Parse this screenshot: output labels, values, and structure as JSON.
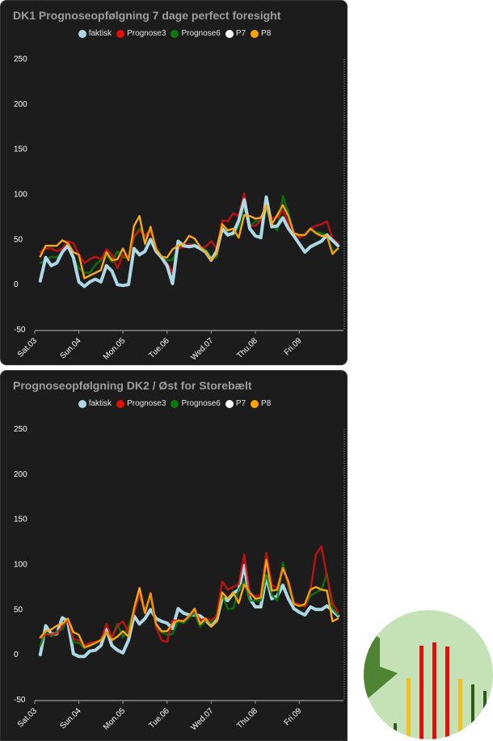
{
  "colors": {
    "faktisk": "#add8e6",
    "Prognose3": "#e0100f",
    "Prognose6": "#0b7a0b",
    "P7": "#ffffff",
    "P8": "#ffa500"
  },
  "chart_data": [
    {
      "type": "line",
      "title": "DK1 Prognoseopfølgning 7 dage perfect foresight",
      "ylim": [
        -50,
        250
      ],
      "yticks": [
        "250",
        "200",
        "150",
        "100",
        "50",
        "0",
        "-50"
      ],
      "ytick_values": [
        250,
        200,
        150,
        100,
        50,
        0,
        -50
      ],
      "xticks": [
        "Sat.03",
        "Sun.04",
        "Mon.05",
        "Tue.06",
        "Wed.07",
        "Thu.08",
        "Fri.09"
      ],
      "xlim_days": [
        0,
        7
      ],
      "x_start_day": 0.125,
      "x_step_day": 0.125,
      "legend": [
        "faktisk",
        "Prognose3",
        "Prognose6",
        "P7",
        "P8"
      ],
      "series": [
        {
          "name": "P7",
          "values": [
            31,
            43,
            43,
            43,
            49,
            46,
            36,
            33,
            7,
            10,
            13,
            16,
            36,
            27,
            28,
            40,
            27,
            65,
            76,
            45,
            64,
            39,
            31,
            30,
            39,
            43,
            45,
            54,
            51,
            42,
            36,
            27,
            34,
            67,
            60,
            62,
            52,
            77,
            76,
            73,
            74,
            88,
            67,
            77,
            88,
            76,
            57,
            55,
            55,
            62,
            57,
            54,
            54,
            34,
            40
          ]
        },
        {
          "name": "Prognose6",
          "values": [
            24,
            27,
            31,
            30,
            36,
            45,
            30,
            18,
            13,
            13,
            22,
            27,
            33,
            25,
            37,
            30,
            30,
            52,
            62,
            54,
            61,
            42,
            31,
            27,
            27,
            42,
            42,
            43,
            45,
            40,
            39,
            30,
            30,
            65,
            57,
            55,
            64,
            86,
            65,
            70,
            71,
            83,
            68,
            60,
            98,
            80,
            54,
            54,
            55,
            61,
            58,
            57,
            55,
            36,
            40
          ]
        },
        {
          "name": "Prognose3",
          "values": [
            36,
            40,
            40,
            37,
            40,
            48,
            46,
            33,
            24,
            28,
            31,
            28,
            39,
            33,
            18,
            33,
            28,
            54,
            60,
            54,
            60,
            40,
            30,
            24,
            13,
            40,
            42,
            45,
            43,
            40,
            42,
            48,
            40,
            71,
            70,
            79,
            76,
            101,
            65,
            65,
            71,
            86,
            74,
            74,
            82,
            68,
            57,
            52,
            55,
            62,
            65,
            67,
            70,
            51,
            46
          ]
        },
        {
          "name": "faktisk",
          "values": [
            4,
            30,
            21,
            24,
            36,
            43,
            30,
            3,
            -2,
            3,
            6,
            3,
            21,
            15,
            0,
            -1,
            0,
            40,
            33,
            37,
            50,
            37,
            30,
            21,
            1,
            48,
            43,
            42,
            43,
            40,
            36,
            27,
            37,
            62,
            55,
            57,
            71,
            94,
            62,
            54,
            52,
            97,
            64,
            65,
            74,
            62,
            54,
            45,
            36,
            42,
            45,
            48,
            55,
            49,
            43
          ]
        },
        {
          "name": "P8",
          "values": [
            31,
            43,
            43,
            43,
            49,
            46,
            36,
            33,
            7,
            10,
            13,
            16,
            36,
            27,
            28,
            40,
            27,
            65,
            76,
            45,
            64,
            39,
            31,
            30,
            39,
            43,
            45,
            54,
            51,
            42,
            36,
            27,
            34,
            67,
            60,
            62,
            52,
            77,
            76,
            73,
            74,
            88,
            67,
            77,
            88,
            76,
            57,
            55,
            55,
            62,
            57,
            54,
            54,
            34,
            40
          ]
        }
      ]
    },
    {
      "type": "line",
      "title": "Prognoseopfølgning DK2 / Øst for Storebælt",
      "ylim": [
        -50,
        250
      ],
      "yticks": [
        "250",
        "200",
        "150",
        "100",
        "50",
        "0",
        "-50"
      ],
      "ytick_values": [
        250,
        200,
        150,
        100,
        50,
        0,
        -50
      ],
      "xticks": [
        "Sat.03",
        "Sun.04",
        "Mon.05",
        "Tue.06",
        "Wed.07",
        "Thu.08",
        "Fri.09"
      ],
      "xlim_days": [
        0,
        7
      ],
      "x_start_day": 0.125,
      "x_step_day": 0.125,
      "legend": [
        "faktisk",
        "Prognose3",
        "Prognose6",
        "P7",
        "P8"
      ],
      "series": [
        {
          "name": "P7",
          "values": [
            19,
            26,
            28,
            32,
            34,
            40,
            25,
            22,
            8,
            10,
            13,
            16,
            25,
            16,
            20,
            26,
            20,
            51,
            74,
            46,
            68,
            34,
            26,
            26,
            34,
            38,
            37,
            43,
            51,
            34,
            40,
            31,
            37,
            69,
            62,
            69,
            57,
            78,
            69,
            62,
            63,
            105,
            71,
            72,
            96,
            81,
            56,
            54,
            56,
            72,
            75,
            72,
            71,
            37,
            40
          ]
        },
        {
          "name": "faktisk",
          "values": [
            0,
            32,
            23,
            23,
            41,
            37,
            1,
            -2,
            -2,
            4,
            5,
            10,
            28,
            10,
            5,
            2,
            16,
            43,
            34,
            40,
            50,
            40,
            37,
            35,
            29,
            51,
            46,
            44,
            44,
            43,
            38,
            32,
            38,
            63,
            60,
            68,
            72,
            99,
            62,
            53,
            53,
            87,
            62,
            65,
            77,
            62,
            51,
            47,
            44,
            53,
            50,
            50,
            54,
            49,
            43
          ]
        },
        {
          "name": "Prognose6",
          "values": [
            10,
            25,
            20,
            26,
            28,
            40,
            14,
            13,
            7,
            13,
            13,
            17,
            25,
            19,
            34,
            19,
            31,
            49,
            66,
            49,
            65,
            31,
            25,
            22,
            23,
            37,
            35,
            41,
            46,
            31,
            38,
            35,
            43,
            66,
            51,
            51,
            72,
            81,
            60,
            60,
            60,
            89,
            66,
            60,
            102,
            75,
            56,
            54,
            54,
            65,
            69,
            72,
            90,
            51,
            44
          ]
        },
        {
          "name": "Prognose3",
          "values": [
            19,
            22,
            23,
            23,
            32,
            38,
            17,
            16,
            10,
            13,
            14,
            16,
            34,
            19,
            32,
            37,
            25,
            46,
            68,
            46,
            68,
            31,
            16,
            14,
            38,
            38,
            37,
            43,
            49,
            38,
            40,
            38,
            43,
            81,
            72,
            75,
            78,
            111,
            66,
            65,
            66,
            113,
            77,
            74,
            96,
            78,
            57,
            56,
            53,
            71,
            111,
            120,
            87,
            57,
            47
          ]
        },
        {
          "name": "P8",
          "values": [
            19,
            26,
            28,
            32,
            34,
            40,
            25,
            22,
            8,
            10,
            13,
            16,
            25,
            16,
            20,
            26,
            20,
            51,
            74,
            46,
            68,
            34,
            26,
            26,
            34,
            38,
            37,
            43,
            51,
            34,
            40,
            31,
            37,
            69,
            62,
            69,
            57,
            78,
            69,
            62,
            63,
            105,
            71,
            72,
            96,
            81,
            56,
            54,
            56,
            72,
            75,
            72,
            71,
            37,
            40
          ]
        }
      ]
    }
  ]
}
